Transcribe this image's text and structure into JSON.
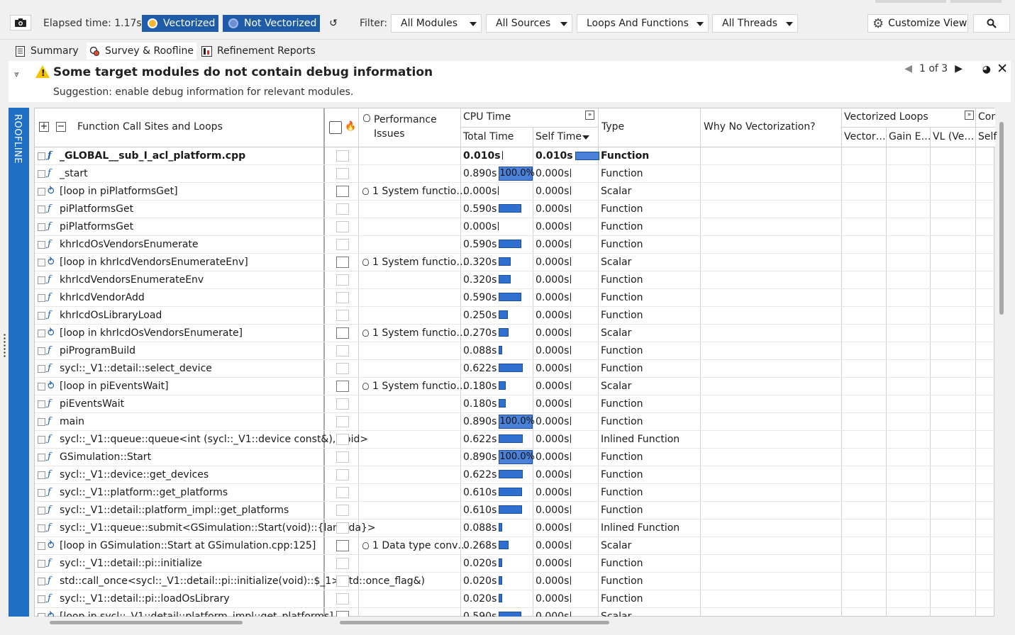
{
  "toolbar": {
    "elapsed": "Elapsed time: 1.17s",
    "vectorized_label": "Vectorized",
    "not_vectorized_label": "Not Vectorized",
    "filter_label": "Filter:",
    "filters": [
      "All Modules",
      "All Sources",
      "Loops And Functions",
      "All Threads"
    ],
    "customize_label": "Customize View"
  },
  "tabs": [
    {
      "label": "Summary"
    },
    {
      "label": "Survey & Roofline"
    },
    {
      "label": "Refinement Reports"
    }
  ],
  "message": {
    "title": "Some target modules do not contain debug information",
    "suggestion": "Suggestion: enable debug information for relevant modules.",
    "pager": "1 of 3"
  },
  "side_tab": "ROOFLINE",
  "grid": {
    "headers": {
      "function": "Function Call Sites and Loops",
      "performance": "Performance",
      "performance2": "Issues",
      "cpu_time": "CPU Time",
      "total_time": "Total Time",
      "self_time": "Self Time",
      "type": "Type",
      "why_no_vec": "Why No Vectorization?",
      "vectorized_loops": "Vectorized Loops",
      "vector": "Vector…",
      "gain": "Gain E…",
      "vl": "VL (Ve…",
      "cor": "Cor",
      "self2": "Self"
    },
    "rows": [
      {
        "kind": "f",
        "name": "_GLOBAL__sub_I_acl_platform.cpp",
        "perf": "",
        "total": "0.010s",
        "self": "0.010s",
        "type": "Function",
        "bold": true,
        "total_frac": 0.0,
        "self_frac": 1.0
      },
      {
        "kind": "f",
        "name": "_start",
        "perf": "",
        "total": "0.890s",
        "self": "0.000s",
        "type": "Function",
        "total_frac": 1.0,
        "self_frac": 0.0
      },
      {
        "kind": "loop",
        "name": "[loop in piPlatformsGet]",
        "perf": "1 System functio…",
        "total": "0.000s",
        "self": "0.000s",
        "type": "Scalar",
        "total_frac": 0.0,
        "self_frac": 0.0
      },
      {
        "kind": "f",
        "name": "piPlatformsGet",
        "perf": "",
        "total": "0.590s",
        "self": "0.000s",
        "type": "Function",
        "total_frac": 0.66,
        "self_frac": 0.0
      },
      {
        "kind": "f",
        "name": "piPlatformsGet",
        "perf": "",
        "total": "0.000s",
        "self": "0.000s",
        "type": "Function",
        "total_frac": 0.0,
        "self_frac": 0.0
      },
      {
        "kind": "f",
        "name": "khrIcdOsVendorsEnumerate",
        "perf": "",
        "total": "0.590s",
        "self": "0.000s",
        "type": "Function",
        "total_frac": 0.66,
        "self_frac": 0.0
      },
      {
        "kind": "loop",
        "name": "[loop in khrIcdVendorsEnumerateEnv]",
        "perf": "1 System functio…",
        "total": "0.320s",
        "self": "0.000s",
        "type": "Scalar",
        "total_frac": 0.36,
        "self_frac": 0.0
      },
      {
        "kind": "f",
        "name": "khrIcdVendorsEnumerateEnv",
        "perf": "",
        "total": "0.320s",
        "self": "0.000s",
        "type": "Function",
        "total_frac": 0.36,
        "self_frac": 0.0
      },
      {
        "kind": "f",
        "name": "khrIcdVendorAdd",
        "perf": "",
        "total": "0.590s",
        "self": "0.000s",
        "type": "Function",
        "total_frac": 0.66,
        "self_frac": 0.0
      },
      {
        "kind": "f",
        "name": "khrIcdOsLibraryLoad",
        "perf": "",
        "total": "0.250s",
        "self": "0.000s",
        "type": "Function",
        "total_frac": 0.28,
        "self_frac": 0.0
      },
      {
        "kind": "loop",
        "name": "[loop in khrIcdOsVendorsEnumerate]",
        "perf": "1 System functio…",
        "total": "0.270s",
        "self": "0.000s",
        "type": "Scalar",
        "total_frac": 0.3,
        "self_frac": 0.0
      },
      {
        "kind": "f",
        "name": "piProgramBuild",
        "perf": "",
        "total": "0.088s",
        "self": "0.000s",
        "type": "Function",
        "total_frac": 0.1,
        "self_frac": 0.0
      },
      {
        "kind": "f",
        "name": "sycl::_V1::detail::select_device",
        "perf": "",
        "total": "0.622s",
        "self": "0.000s",
        "type": "Function",
        "total_frac": 0.7,
        "self_frac": 0.0
      },
      {
        "kind": "loop",
        "name": "[loop in piEventsWait]",
        "perf": "1 System functio…",
        "total": "0.180s",
        "self": "0.000s",
        "type": "Scalar",
        "total_frac": 0.2,
        "self_frac": 0.0
      },
      {
        "kind": "f",
        "name": "piEventsWait",
        "perf": "",
        "total": "0.180s",
        "self": "0.000s",
        "type": "Function",
        "total_frac": 0.2,
        "self_frac": 0.0
      },
      {
        "kind": "f",
        "name": "main",
        "perf": "",
        "total": "0.890s",
        "self": "0.000s",
        "type": "Function",
        "total_frac": 1.0,
        "self_frac": 0.0
      },
      {
        "kind": "f",
        "name": "sycl::_V1::queue::queue<int (sycl::_V1::device const&), void>",
        "perf": "",
        "total": "0.622s",
        "self": "0.000s",
        "type": "Inlined Function",
        "total_frac": 0.7,
        "self_frac": 0.0
      },
      {
        "kind": "f",
        "name": "GSimulation::Start",
        "perf": "",
        "total": "0.890s",
        "self": "0.000s",
        "type": "Function",
        "total_frac": 1.0,
        "self_frac": 0.0
      },
      {
        "kind": "f",
        "name": "sycl::_V1::device::get_devices",
        "perf": "",
        "total": "0.622s",
        "self": "0.000s",
        "type": "Function",
        "total_frac": 0.7,
        "self_frac": 0.0
      },
      {
        "kind": "f",
        "name": "sycl::_V1::platform::get_platforms",
        "perf": "",
        "total": "0.610s",
        "self": "0.000s",
        "type": "Function",
        "total_frac": 0.69,
        "self_frac": 0.0
      },
      {
        "kind": "f",
        "name": "sycl::_V1::detail::platform_impl::get_platforms",
        "perf": "",
        "total": "0.610s",
        "self": "0.000s",
        "type": "Function",
        "total_frac": 0.69,
        "self_frac": 0.0
      },
      {
        "kind": "f",
        "name": "sycl::_V1::queue::submit<GSimulation::Start(void)::{lambda}>",
        "perf": "",
        "total": "0.088s",
        "self": "0.000s",
        "type": "Inlined Function",
        "total_frac": 0.1,
        "self_frac": 0.0
      },
      {
        "kind": "loop",
        "name": "[loop in GSimulation::Start at GSimulation.cpp:125]",
        "perf": "1 Data type conv…",
        "total": "0.268s",
        "self": "0.000s",
        "type": "Scalar",
        "total_frac": 0.3,
        "self_frac": 0.0
      },
      {
        "kind": "f",
        "name": "sycl::_V1::detail::pi::initialize",
        "perf": "",
        "total": "0.020s",
        "self": "0.000s",
        "type": "Function",
        "total_frac": 0.02,
        "self_frac": 0.0
      },
      {
        "kind": "f",
        "name": "std::call_once<sycl::_V1::detail::pi::initialize(void)::$_1>(std::once_flag&)",
        "perf": "",
        "total": "0.020s",
        "self": "0.000s",
        "type": "Function",
        "total_frac": 0.02,
        "self_frac": 0.0
      },
      {
        "kind": "f",
        "name": "sycl::_V1::detail::pi::loadOsLibrary",
        "perf": "",
        "total": "0.020s",
        "self": "0.000s",
        "type": "Function",
        "total_frac": 0.02,
        "self_frac": 0.0
      },
      {
        "kind": "loop",
        "name": "[loop in sycl::_V1::detail::platform_impl::get_platforms]",
        "perf": "",
        "total": "0.590s",
        "self": "0.000s",
        "type": "Scalar",
        "total_frac": 0.66,
        "self_frac": 0.0
      }
    ],
    "full_bar_label": "100.0%"
  },
  "colors": {
    "accent": "#1f5ca8",
    "bar": "#2e6fd0",
    "side_tab": "#1f6fc5",
    "warning": "#f5c400"
  }
}
